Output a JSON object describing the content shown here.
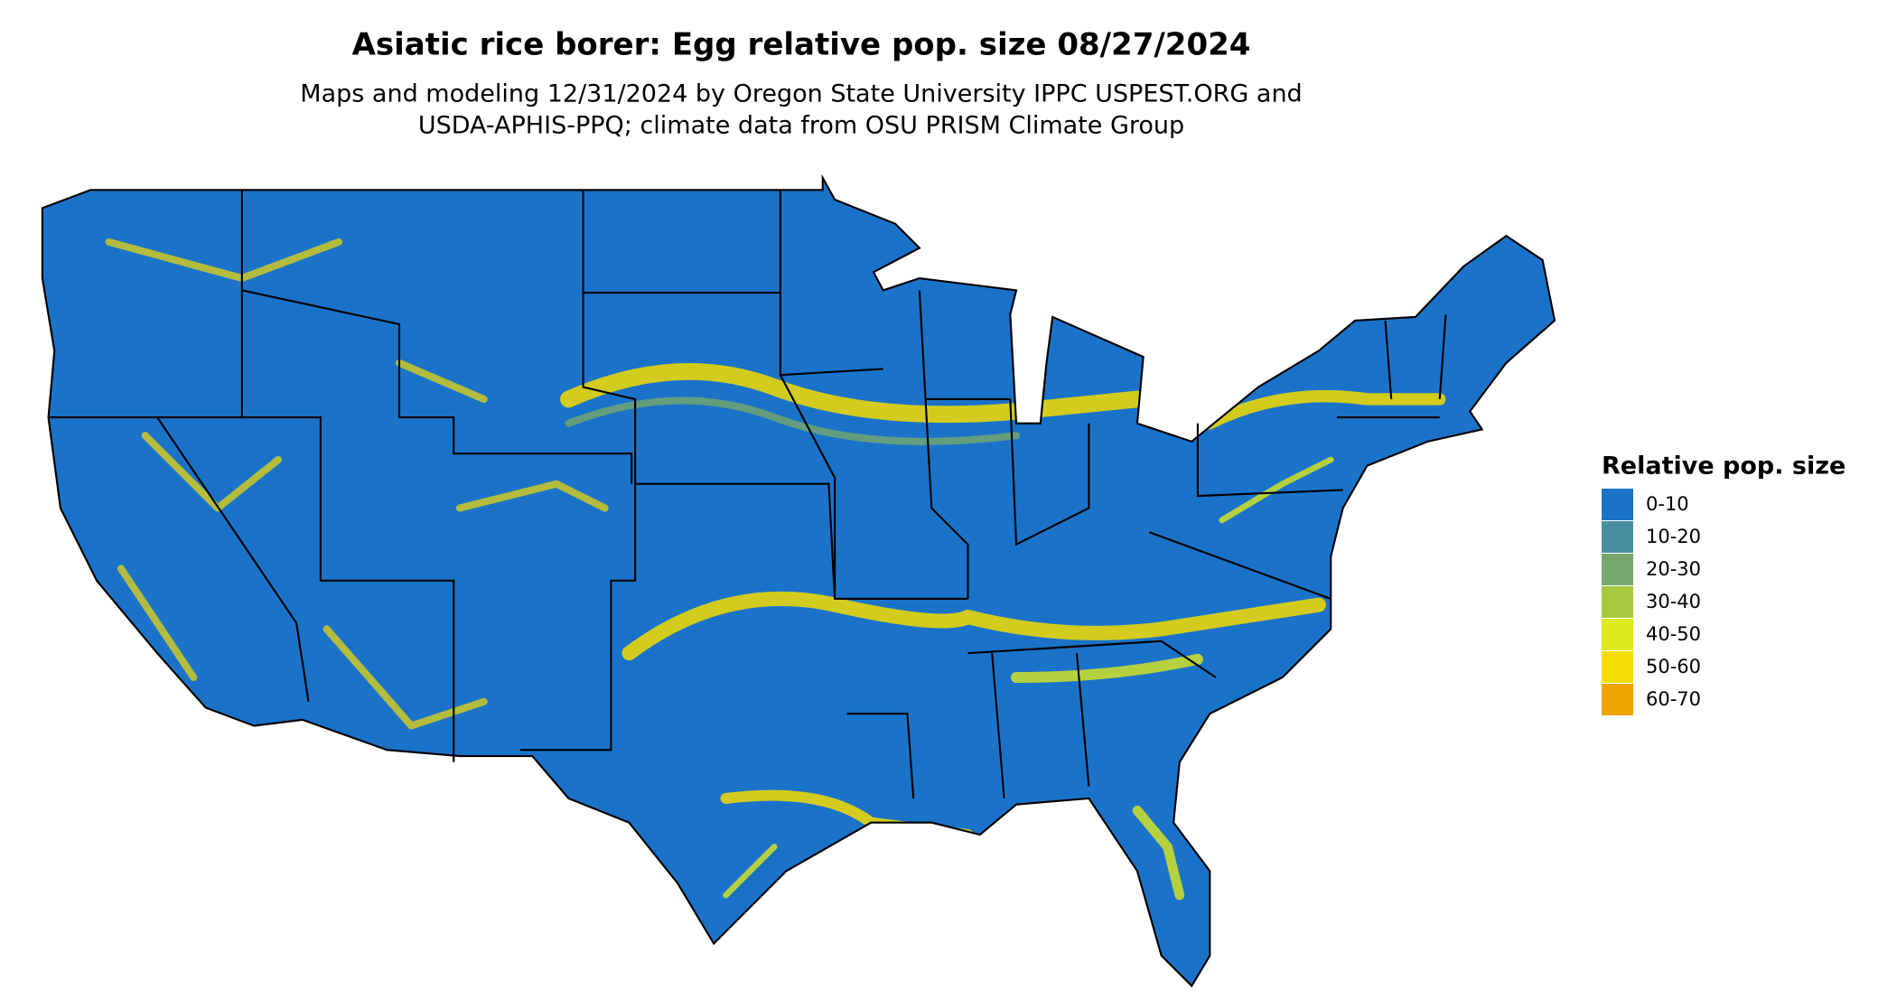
{
  "header": {
    "title": "Asiatic rice borer: Egg relative pop. size 08/27/2024",
    "subtitle": [
      "Maps and modeling 12/31/2024 by Oregon State University IPPC USPEST.ORG and",
      "USDA-APHIS-PPQ; climate data from OSU PRISM Climate Group"
    ]
  },
  "legend": {
    "title": "Relative pop. size",
    "items": [
      {
        "label": "0-10",
        "color": "#1a73c9"
      },
      {
        "label": "10-20",
        "color": "#4a8fa0"
      },
      {
        "label": "20-30",
        "color": "#75a86a"
      },
      {
        "label": "30-40",
        "color": "#a7c93d"
      },
      {
        "label": "40-50",
        "color": "#dde81d"
      },
      {
        "label": "50-60",
        "color": "#f5dc00"
      },
      {
        "label": "60-70",
        "color": "#eda300"
      }
    ]
  }
}
